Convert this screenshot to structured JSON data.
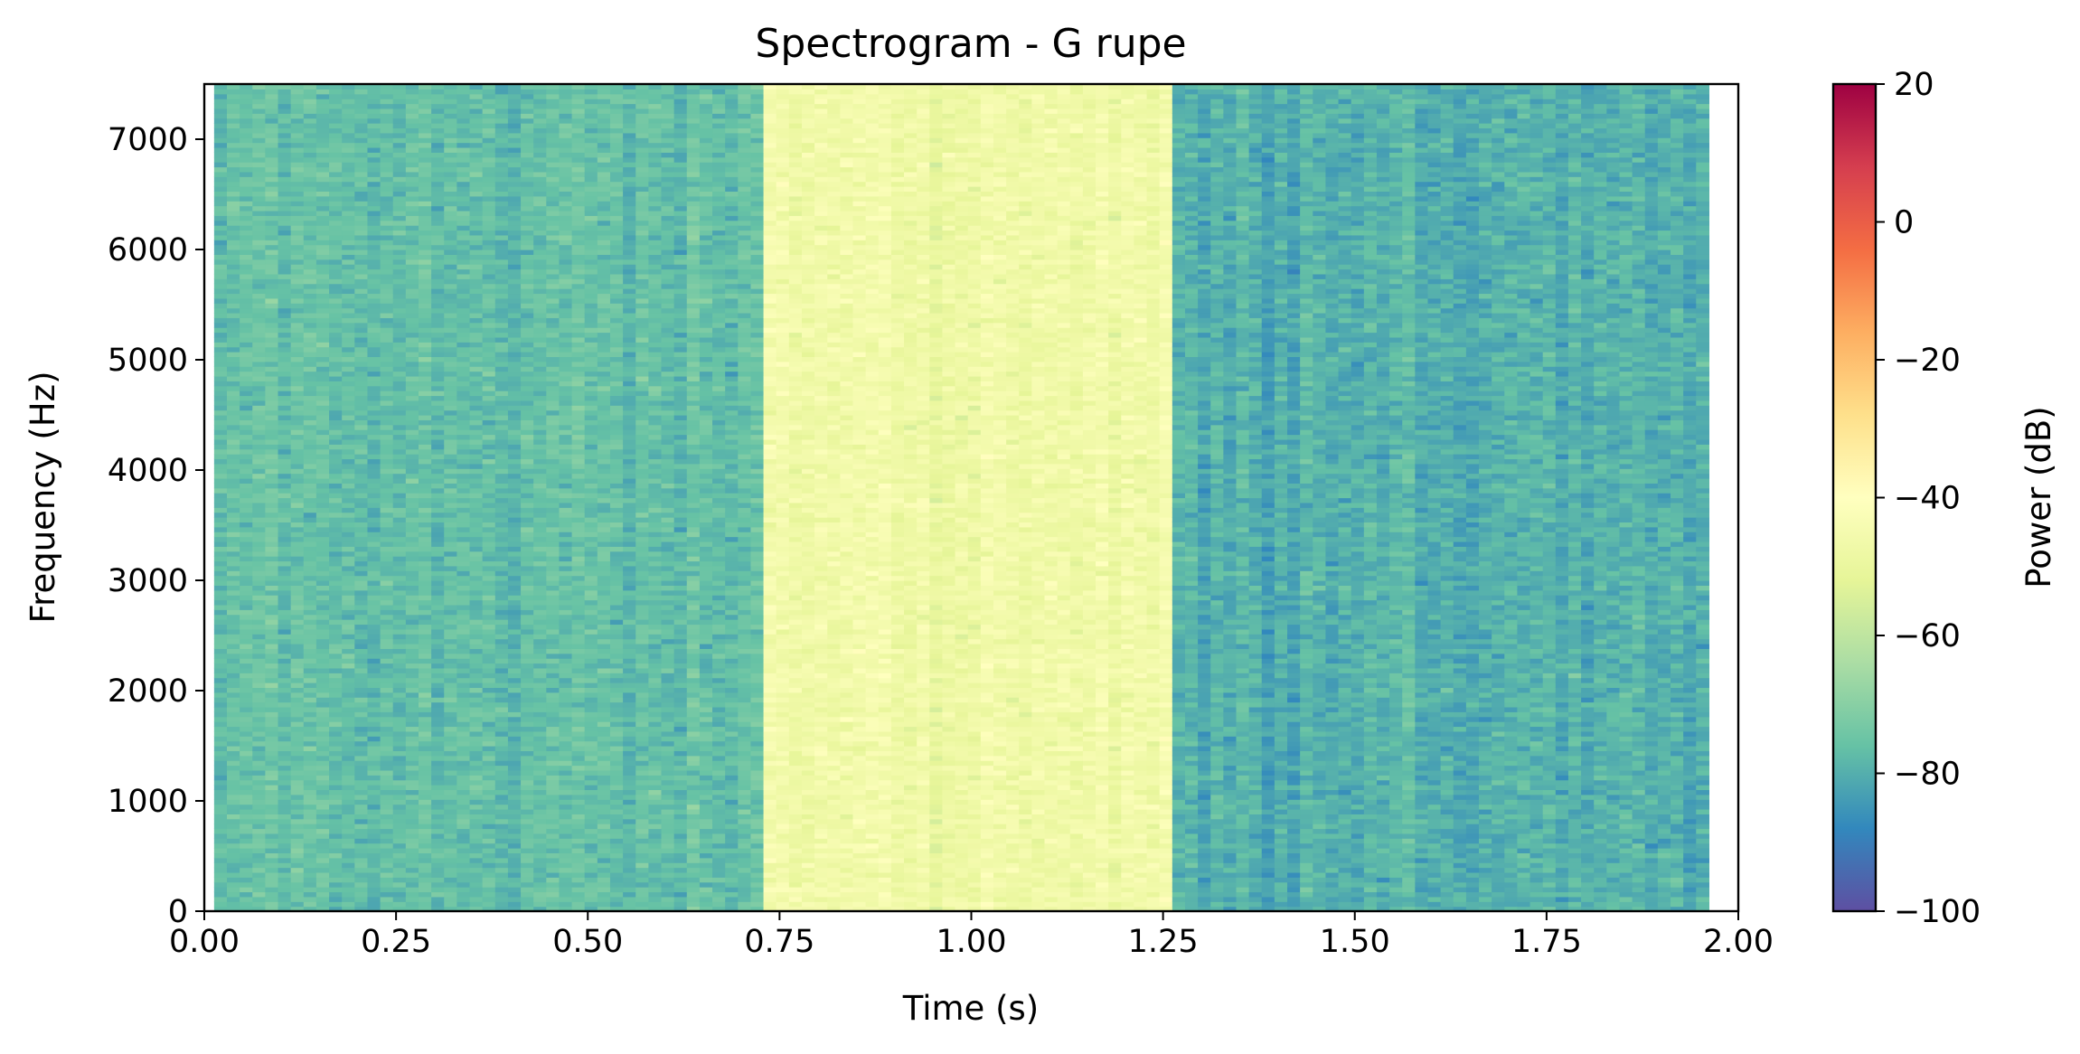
{
  "chart_data": {
    "type": "heatmap",
    "title": "Spectrogram - G rupe",
    "xlabel": "Time (s)",
    "ylabel": "Frequency (Hz)",
    "colorbar_label": "Power (dB)",
    "colormap": "Spectral_r",
    "xlim": [
      0.0,
      2.0
    ],
    "ylim": [
      0,
      7500
    ],
    "clim": [
      -100,
      20
    ],
    "x_ticks": [
      0.0,
      0.25,
      0.5,
      0.75,
      1.0,
      1.25,
      1.5,
      1.75,
      2.0
    ],
    "x_tick_labels": [
      "0.00",
      "0.25",
      "0.50",
      "0.75",
      "1.00",
      "1.25",
      "1.50",
      "1.75",
      "2.00"
    ],
    "y_ticks": [
      0,
      1000,
      2000,
      3000,
      4000,
      5000,
      6000,
      7000
    ],
    "y_tick_labels": [
      "0",
      "1000",
      "2000",
      "3000",
      "4000",
      "5000",
      "6000",
      "7000"
    ],
    "colorbar_ticks": [
      -100,
      -80,
      -60,
      -40,
      -20,
      0,
      20
    ],
    "colorbar_tick_labels": [
      "−100",
      "−80",
      "−60",
      "−40",
      "−20",
      "0",
      "20"
    ],
    "grid": false,
    "data_time_range": [
      0.0128,
      1.9616
    ],
    "segments": [
      {
        "start": 0.0128,
        "end": 0.736,
        "mean_power_db": -76
      },
      {
        "start": 0.736,
        "end": 1.264,
        "mean_power_db": -47
      },
      {
        "start": 1.264,
        "end": 1.9616,
        "mean_power_db": -80
      }
    ]
  },
  "colors": {
    "colormap_stops": [
      "#5e4fa2",
      "#3288bd",
      "#66c2a5",
      "#abdda4",
      "#e6f598",
      "#ffffbf",
      "#fee08b",
      "#fdae61",
      "#f46d43",
      "#d53e4f",
      "#9e0142"
    ]
  }
}
